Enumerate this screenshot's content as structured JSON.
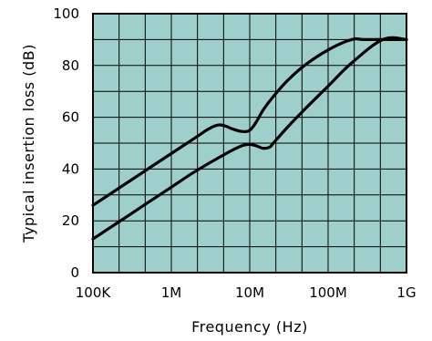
{
  "chart_data": {
    "type": "line",
    "xlabel": "Frequency  (Hz)",
    "ylabel": "Typical insertion loss (dB)",
    "x_scale": "log",
    "xlim": [
      100000,
      1000000000
    ],
    "ylim": [
      0,
      100
    ],
    "x_ticks": [
      {
        "value": 100000,
        "label": "100K"
      },
      {
        "value": 1000000,
        "label": "1M"
      },
      {
        "value": 10000000,
        "label": "10M"
      },
      {
        "value": 100000000,
        "label": "100M"
      },
      {
        "value": 1000000000,
        "label": "1G"
      }
    ],
    "y_ticks": [
      {
        "value": 0,
        "label": "0"
      },
      {
        "value": 20,
        "label": "20"
      },
      {
        "value": 40,
        "label": "40"
      },
      {
        "value": 60,
        "label": "60"
      },
      {
        "value": 80,
        "label": "80"
      },
      {
        "value": 100,
        "label": "100"
      }
    ],
    "grid": true,
    "colors": {
      "plot_background": "#9ecfcb",
      "grid": "#000000",
      "series": "#000000"
    },
    "series": [
      {
        "x": [
          100000,
          200000,
          500000,
          1000000,
          2000000,
          3000000,
          4000000,
          5000000,
          6000000,
          8000000,
          10000000,
          12000000,
          15000000,
          20000000,
          30000000,
          50000000,
          100000000,
          200000000,
          300000000,
          1000000000
        ],
        "y": [
          26,
          32,
          40,
          46,
          52,
          55.5,
          57,
          56.5,
          55.5,
          54.5,
          55,
          58,
          63,
          68,
          74,
          80,
          86,
          90,
          90,
          90
        ]
      },
      {
        "x": [
          100000,
          200000,
          500000,
          1000000,
          2000000,
          5000000,
          8000000,
          10000000,
          12000000,
          15000000,
          18000000,
          20000000,
          30000000,
          50000000,
          100000000,
          200000000,
          500000000,
          1000000000
        ],
        "y": [
          13,
          19,
          27,
          33,
          39,
          46,
          49,
          49.5,
          49,
          48,
          48.5,
          50,
          56,
          63,
          72,
          81,
          90,
          90
        ]
      }
    ]
  }
}
